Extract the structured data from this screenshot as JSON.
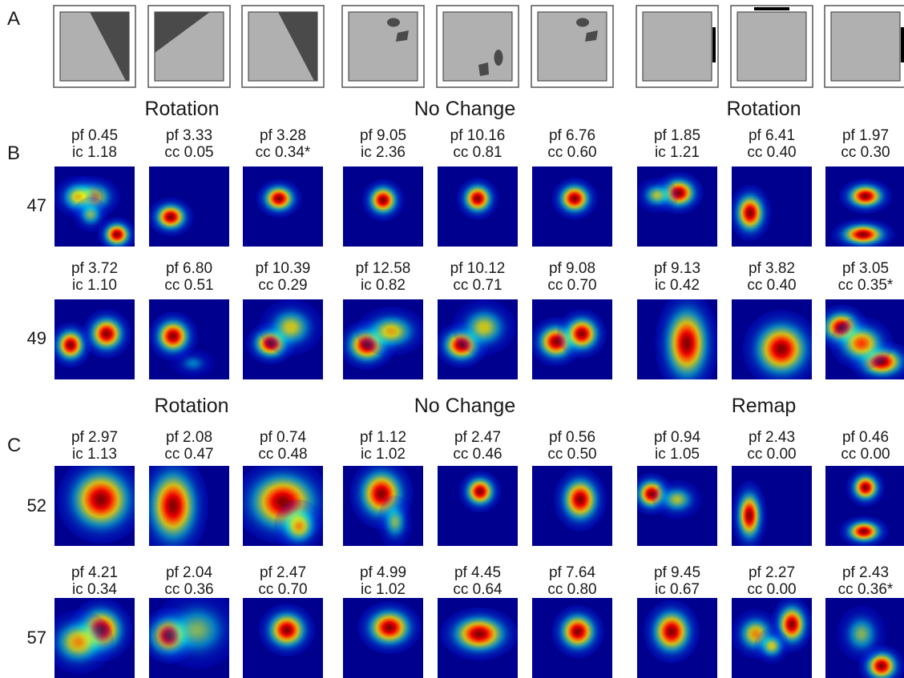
{
  "panel_labels": [
    "A",
    "B",
    "C"
  ],
  "colors": {
    "map_background": "#00008f",
    "arena_fill": "#b0b0b0",
    "cue_fill": "#4a4a4a",
    "frame": "#555555",
    "bar": "#000000"
  },
  "schematics": [
    {
      "type": "triangle",
      "variant": "tri-a"
    },
    {
      "type": "triangle",
      "variant": "tri-b"
    },
    {
      "type": "triangle",
      "variant": "tri-a"
    },
    {
      "type": "objects",
      "variant": "obj-a"
    },
    {
      "type": "objects",
      "variant": "obj-b"
    },
    {
      "type": "objects",
      "variant": "obj-a"
    },
    {
      "type": "bar",
      "variant": "bar-right"
    },
    {
      "type": "bar",
      "variant": "bar-top"
    },
    {
      "type": "bar",
      "variant": "bar-right"
    }
  ],
  "panel_b": {
    "group_titles": [
      "Rotation",
      "No Change",
      "Rotation"
    ],
    "cells": [
      {
        "id": "47",
        "stats": [
          {
            "l1": "pf 0.45",
            "l2": "ic 1.18"
          },
          {
            "l1": "pf 3.33",
            "l2": "cc 0.05"
          },
          {
            "l1": "pf 3.28",
            "l2": "cc 0.34*"
          },
          {
            "l1": "pf 9.05",
            "l2": "ic 2.36"
          },
          {
            "l1": "pf 10.16",
            "l2": "cc 0.81"
          },
          {
            "l1": "pf 6.76",
            "l2": "cc 0.60"
          },
          {
            "l1": "pf 1.85",
            "l2": "ic 1.21"
          },
          {
            "l1": "pf 6.41",
            "l2": "cc 0.40"
          },
          {
            "l1": "pf 1.97",
            "l2": "cc 0.30"
          }
        ],
        "maps": [
          [
            [
              0.78,
              0.85,
              0.11,
              0.1,
              1.0
            ],
            [
              0.47,
              0.38,
              0.16,
              0.12,
              0.75
            ],
            [
              0.3,
              0.38,
              0.14,
              0.12,
              0.65
            ],
            [
              0.45,
              0.6,
              0.1,
              0.1,
              0.5
            ]
          ],
          [
            [
              0.27,
              0.63,
              0.13,
              0.11,
              1.0
            ]
          ],
          [
            [
              0.45,
              0.4,
              0.13,
              0.11,
              1.0
            ]
          ],
          [
            [
              0.5,
              0.42,
              0.12,
              0.12,
              1.0
            ]
          ],
          [
            [
              0.5,
              0.4,
              0.12,
              0.12,
              1.0
            ]
          ],
          [
            [
              0.53,
              0.4,
              0.13,
              0.12,
              1.0
            ]
          ],
          [
            [
              0.52,
              0.33,
              0.14,
              0.12,
              1.0
            ],
            [
              0.25,
              0.36,
              0.12,
              0.1,
              0.55
            ]
          ],
          [
            [
              0.23,
              0.58,
              0.12,
              0.16,
              1.0
            ]
          ],
          [
            [
              0.5,
              0.37,
              0.15,
              0.1,
              1.0
            ],
            [
              0.47,
              0.85,
              0.18,
              0.09,
              1.0
            ]
          ]
        ]
      },
      {
        "id": "49",
        "stats": [
          {
            "l1": "pf 3.72",
            "l2": "ic 1.10"
          },
          {
            "l1": "pf 6.80",
            "l2": "cc 0.51"
          },
          {
            "l1": "pf 10.39",
            "l2": "cc 0.29"
          },
          {
            "l1": "pf 12.58",
            "l2": "ic 0.82"
          },
          {
            "l1": "pf 10.12",
            "l2": "cc 0.71"
          },
          {
            "l1": "pf 9.08",
            "l2": "cc 0.70"
          },
          {
            "l1": "pf 9.13",
            "l2": "ic 0.42"
          },
          {
            "l1": "pf 3.82",
            "l2": "cc 0.40"
          },
          {
            "l1": "pf 3.05",
            "l2": "cc 0.35*"
          }
        ],
        "maps": [
          [
            [
              0.2,
              0.57,
              0.12,
              0.13,
              1.0
            ],
            [
              0.65,
              0.43,
              0.14,
              0.14,
              1.0
            ]
          ],
          [
            [
              0.3,
              0.46,
              0.14,
              0.14,
              1.0
            ],
            [
              0.55,
              0.8,
              0.12,
              0.08,
              0.3
            ]
          ],
          [
            [
              0.35,
              0.55,
              0.14,
              0.12,
              1.0
            ],
            [
              0.6,
              0.35,
              0.18,
              0.16,
              0.6
            ]
          ],
          [
            [
              0.3,
              0.57,
              0.16,
              0.14,
              1.0
            ],
            [
              0.6,
              0.4,
              0.2,
              0.14,
              0.65
            ]
          ],
          [
            [
              0.3,
              0.57,
              0.15,
              0.13,
              1.0
            ],
            [
              0.58,
              0.35,
              0.18,
              0.16,
              0.6
            ]
          ],
          [
            [
              0.3,
              0.53,
              0.15,
              0.14,
              1.0
            ],
            [
              0.62,
              0.43,
              0.14,
              0.14,
              1.0
            ]
          ],
          [
            [
              0.62,
              0.55,
              0.18,
              0.3,
              1.0
            ]
          ],
          [
            [
              0.62,
              0.62,
              0.22,
              0.22,
              1.0
            ]
          ],
          [
            [
              0.2,
              0.35,
              0.15,
              0.13,
              1.0
            ],
            [
              0.7,
              0.78,
              0.18,
              0.12,
              1.0
            ],
            [
              0.45,
              0.55,
              0.18,
              0.15,
              0.8
            ]
          ]
        ]
      }
    ]
  },
  "panel_c": {
    "group_titles": [
      "Rotation",
      "No Change",
      "Remap"
    ],
    "cells": [
      {
        "id": "52",
        "stats": [
          {
            "l1": "pf 2.97",
            "l2": "ic 1.13"
          },
          {
            "l1": "pf 2.08",
            "l2": "cc 0.47"
          },
          {
            "l1": "pf 0.74",
            "l2": "cc 0.48"
          },
          {
            "l1": "pf 1.12",
            "l2": "ic 1.02"
          },
          {
            "l1": "pf 2.47",
            "l2": "cc 0.46"
          },
          {
            "l1": "pf 0.56",
            "l2": "cc 0.50"
          },
          {
            "l1": "pf 0.94",
            "l2": "ic 1.05"
          },
          {
            "l1": "pf 2.43",
            "l2": "cc 0.00"
          },
          {
            "l1": "pf 0.46",
            "l2": "cc 0.00"
          }
        ],
        "maps": [
          [
            [
              0.58,
              0.42,
              0.25,
              0.25,
              1.0
            ]
          ],
          [
            [
              0.3,
              0.5,
              0.2,
              0.3,
              1.0
            ]
          ],
          [
            [
              0.5,
              0.45,
              0.28,
              0.24,
              1.0
            ],
            [
              0.7,
              0.75,
              0.14,
              0.15,
              0.7
            ]
          ],
          [
            [
              0.48,
              0.35,
              0.18,
              0.2,
              1.0
            ],
            [
              0.65,
              0.7,
              0.1,
              0.15,
              0.5
            ]
          ],
          [
            [
              0.53,
              0.32,
              0.12,
              0.12,
              1.0
            ]
          ],
          [
            [
              0.6,
              0.42,
              0.15,
              0.18,
              1.0
            ]
          ],
          [
            [
              0.18,
              0.35,
              0.12,
              0.12,
              1.0
            ],
            [
              0.5,
              0.42,
              0.14,
              0.11,
              0.55
            ]
          ],
          [
            [
              0.22,
              0.62,
              0.1,
              0.2,
              1.0
            ]
          ],
          [
            [
              0.5,
              0.27,
              0.11,
              0.11,
              1.0
            ],
            [
              0.48,
              0.82,
              0.14,
              0.09,
              1.0
            ]
          ]
        ]
      },
      {
        "id": "57",
        "stats": [
          {
            "l1": "pf 4.21",
            "l2": "ic 0.34"
          },
          {
            "l1": "pf 2.04",
            "l2": "cc 0.36"
          },
          {
            "l1": "pf 2.47",
            "l2": "cc 0.70"
          },
          {
            "l1": "pf 4.99",
            "l2": "ic 1.02"
          },
          {
            "l1": "pf 4.45",
            "l2": "cc 0.64"
          },
          {
            "l1": "pf 7.64",
            "l2": "cc 0.80"
          },
          {
            "l1": "pf 9.45",
            "l2": "ic 0.67"
          },
          {
            "l1": "pf 2.27",
            "l2": "cc 0.00"
          },
          {
            "l1": "pf 2.43",
            "l2": "cc 0.36*"
          }
        ],
        "maps": [
          [
            [
              0.58,
              0.4,
              0.18,
              0.18,
              1.0
            ],
            [
              0.3,
              0.55,
              0.2,
              0.18,
              0.7
            ]
          ],
          [
            [
              0.25,
              0.47,
              0.16,
              0.16,
              1.0
            ],
            [
              0.6,
              0.4,
              0.25,
              0.22,
              0.5
            ]
          ],
          [
            [
              0.55,
              0.4,
              0.16,
              0.15,
              1.0
            ]
          ],
          [
            [
              0.58,
              0.37,
              0.18,
              0.15,
              1.0
            ]
          ],
          [
            [
              0.52,
              0.45,
              0.22,
              0.15,
              1.0
            ]
          ],
          [
            [
              0.57,
              0.42,
              0.15,
              0.15,
              1.0
            ]
          ],
          [
            [
              0.43,
              0.42,
              0.16,
              0.18,
              1.0
            ]
          ],
          [
            [
              0.75,
              0.33,
              0.12,
              0.16,
              1.0
            ],
            [
              0.3,
              0.45,
              0.14,
              0.14,
              0.7
            ],
            [
              0.5,
              0.6,
              0.1,
              0.1,
              0.6
            ]
          ],
          [
            [
              0.7,
              0.85,
              0.13,
              0.12,
              1.0
            ],
            [
              0.45,
              0.45,
              0.14,
              0.16,
              0.5
            ]
          ]
        ]
      }
    ]
  }
}
